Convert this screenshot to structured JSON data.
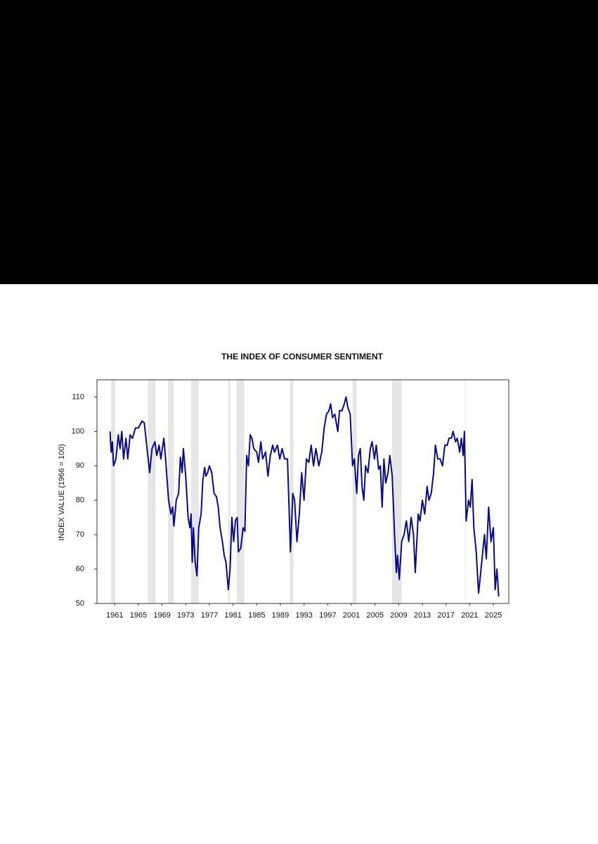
{
  "chart_data": {
    "type": "line",
    "title": "THE INDEX OF CONSUMER SENTIMENT",
    "y_label": "INDEX VALUE (1966 = 100)",
    "xlim": [
      1958,
      2027.6
    ],
    "ylim": [
      50,
      115
    ],
    "xticks": [
      1961,
      1965,
      1969,
      1973,
      1977,
      1981,
      1985,
      1989,
      1993,
      1997,
      2001,
      2005,
      2009,
      2013,
      2017,
      2021,
      2025
    ],
    "yticks": [
      50,
      60,
      70,
      80,
      90,
      100,
      110
    ],
    "recessions": [
      [
        1960.4,
        1961.1
      ],
      [
        1966.6,
        1967.9
      ],
      [
        1970.0,
        1971.0
      ],
      [
        1973.9,
        1975.2
      ],
      [
        1980.2,
        1980.5
      ],
      [
        1981.6,
        1982.9
      ],
      [
        1990.6,
        1991.2
      ],
      [
        2001.2,
        2001.9
      ],
      [
        2007.9,
        2009.5
      ],
      [
        2020.2,
        2020.3
      ]
    ],
    "recession_color": "#e6e6e6",
    "series": [
      {
        "color": "#0a0a8c",
        "x": [
          1960.2,
          1960.4,
          1960.6,
          1960.8,
          1961.2,
          1961.6,
          1961.9,
          1962.2,
          1962.5,
          1962.9,
          1963.2,
          1963.6,
          1964,
          1964.5,
          1965,
          1965.6,
          1966,
          1966.4,
          1966.9,
          1967.3,
          1967.8,
          1968.1,
          1968.5,
          1968.8,
          1969.3,
          1969.6,
          1970.1,
          1970.5,
          1970.8,
          1971,
          1971.4,
          1971.8,
          1972.1,
          1972.4,
          1972.6,
          1973,
          1973.4,
          1973.7,
          1973.9,
          1974.1,
          1974.3,
          1974.6,
          1974.9,
          1975.2,
          1975.6,
          1975.9,
          1976.2,
          1976.4,
          1976.7,
          1977,
          1977.4,
          1977.8,
          1978.2,
          1978.5,
          1978.8,
          1979.2,
          1979.5,
          1979.8,
          1980.2,
          1980.5,
          1980.8,
          1981.1,
          1981.4,
          1981.7,
          1981.9,
          1982.3,
          1982.7,
          1983,
          1983.3,
          1983.6,
          1983.9,
          1984.2,
          1984.5,
          1985,
          1985.3,
          1985.7,
          1986,
          1986.5,
          1986.9,
          1987.3,
          1987.7,
          1988,
          1988.5,
          1988.9,
          1989.3,
          1989.7,
          1990.2,
          1990.7,
          1991.1,
          1991.4,
          1991.8,
          1992.2,
          1992.6,
          1993,
          1993.4,
          1993.8,
          1994.2,
          1994.6,
          1995,
          1995.5,
          1996,
          1996.4,
          1996.8,
          1997.2,
          1997.5,
          1997.8,
          1998.2,
          1998.7,
          1999,
          1999.4,
          1999.8,
          2000.1,
          2000.4,
          2000.8,
          2001.2,
          2001.5,
          2001.9,
          2002.2,
          2002.5,
          2002.8,
          2003.1,
          2003.4,
          2003.8,
          2004.2,
          2004.5,
          2004.9,
          2005.2,
          2005.6,
          2005.9,
          2006.2,
          2006.5,
          2006.8,
          2007.2,
          2007.5,
          2007.9,
          2008.3,
          2008.6,
          2008.8,
          2009.1,
          2009.5,
          2009.9,
          2010.3,
          2010.7,
          2011.1,
          2011.5,
          2011.8,
          2012.3,
          2012.6,
          2013,
          2013.4,
          2013.8,
          2014.1,
          2014.5,
          2014.9,
          2015.2,
          2015.6,
          2016,
          2016.4,
          2016.8,
          2017.2,
          2017.5,
          2017.9,
          2018.2,
          2018.6,
          2018.9,
          2019.3,
          2019.6,
          2019.9,
          2020.1,
          2020.4,
          2020.8,
          2021.1,
          2021.4,
          2021.7,
          2022.1,
          2022.5,
          2022.8,
          2023.2,
          2023.5,
          2023.8,
          2024.2,
          2024.6,
          2025,
          2025.3,
          2025.6,
          2025.9
        ],
        "values": [
          100,
          94,
          97,
          90,
          92,
          99,
          95,
          100,
          92,
          98,
          92,
          99,
          98,
          101,
          101,
          103,
          102.5,
          96,
          88,
          95,
          97,
          93,
          96,
          92,
          98,
          92,
          80,
          76,
          78,
          72.5,
          80,
          82,
          92.5,
          88,
          95,
          87,
          75,
          72,
          76,
          62,
          72,
          62,
          58,
          72,
          76,
          86,
          89.5,
          87,
          88,
          90,
          88,
          82,
          81,
          78,
          72,
          68,
          64,
          62,
          54,
          60,
          75,
          68,
          74,
          75,
          65,
          66,
          72,
          71,
          93,
          90,
          99,
          98,
          95,
          94,
          91,
          97,
          92,
          94,
          87,
          93,
          96,
          94,
          96,
          92,
          95,
          92,
          92,
          65,
          82,
          80,
          68,
          76,
          88,
          80,
          92,
          91,
          96,
          90,
          95,
          90,
          94,
          101,
          105,
          106,
          108,
          104,
          105,
          100,
          106,
          106,
          108,
          110,
          107,
          105,
          90,
          92,
          82,
          93,
          95,
          84,
          80,
          90,
          88,
          95,
          97,
          92,
          96,
          89,
          90,
          78,
          92,
          85,
          88,
          93,
          87,
          70,
          59,
          64,
          57,
          68,
          70,
          74,
          68,
          75,
          70,
          59,
          76,
          74,
          80,
          76,
          84,
          80,
          82,
          88,
          96,
          92,
          92,
          90,
          96,
          96,
          98,
          98,
          100,
          97,
          98,
          94,
          98,
          93,
          100,
          74,
          80,
          78,
          86,
          72,
          65,
          53,
          58,
          65,
          70,
          63,
          78,
          68,
          72,
          54,
          60,
          52
        ]
      }
    ]
  }
}
